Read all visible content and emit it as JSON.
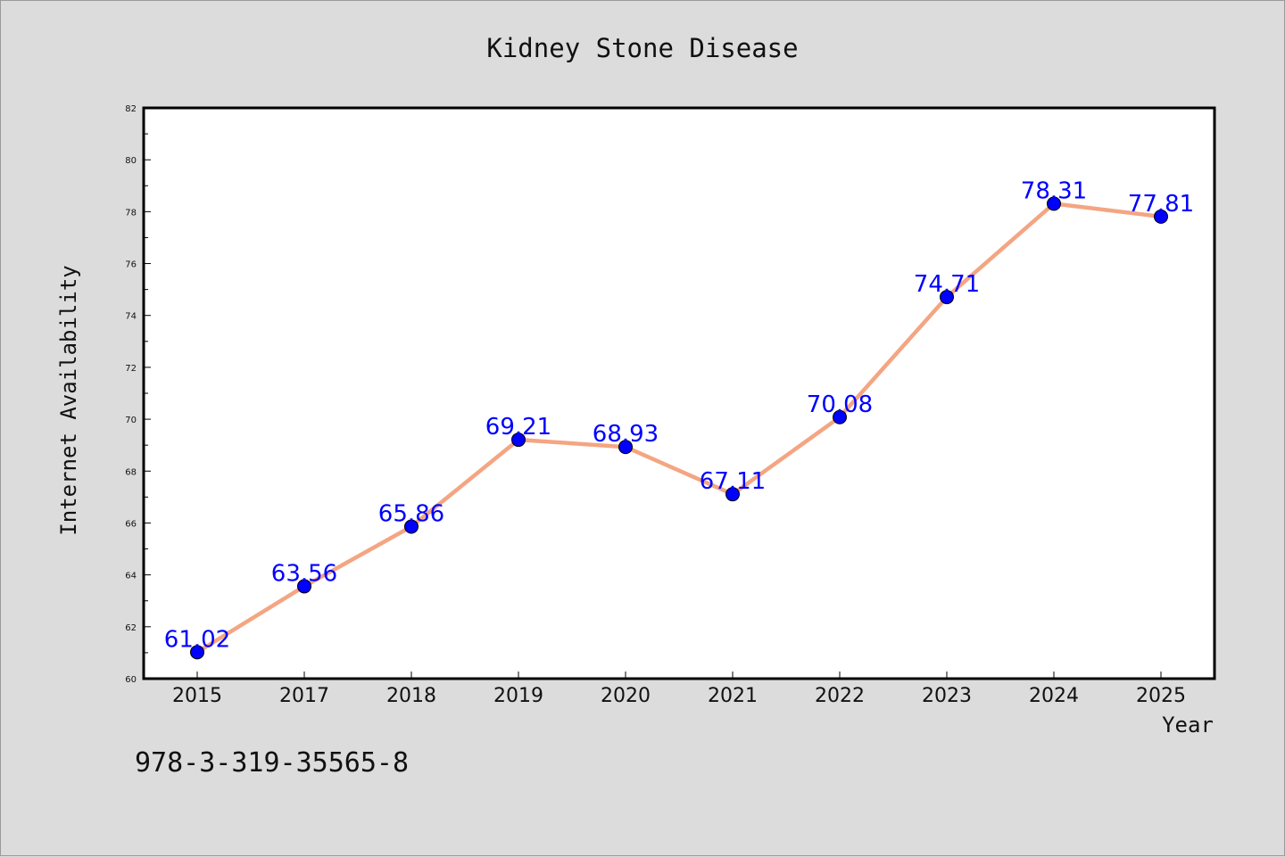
{
  "chart_data": {
    "type": "line",
    "title": "Kidney Stone Disease",
    "xlabel": "Year",
    "ylabel": "Internet Availability",
    "categories": [
      "2015",
      "2017",
      "2018",
      "2019",
      "2020",
      "2021",
      "2022",
      "2023",
      "2024",
      "2025"
    ],
    "series": [
      {
        "values": [
          61.02,
          63.56,
          65.86,
          69.21,
          68.93,
          67.11,
          70.08,
          74.71,
          78.31,
          77.81
        ],
        "data_labels": [
          "61.02",
          "63.56",
          "65.86",
          "69.21",
          "68.93",
          "67.11",
          "70.08",
          "74.71",
          "78.31",
          "77.81"
        ],
        "line_color": "#f4a582",
        "marker_color": "#0000ff"
      }
    ],
    "ylim": [
      60,
      82
    ],
    "yticks": [
      "60",
      "62",
      "64",
      "66",
      "68",
      "70",
      "72",
      "74",
      "76",
      "78",
      "80",
      "82"
    ],
    "grid": false,
    "legend": "none"
  },
  "footer_text": "978-3-319-35565-8"
}
